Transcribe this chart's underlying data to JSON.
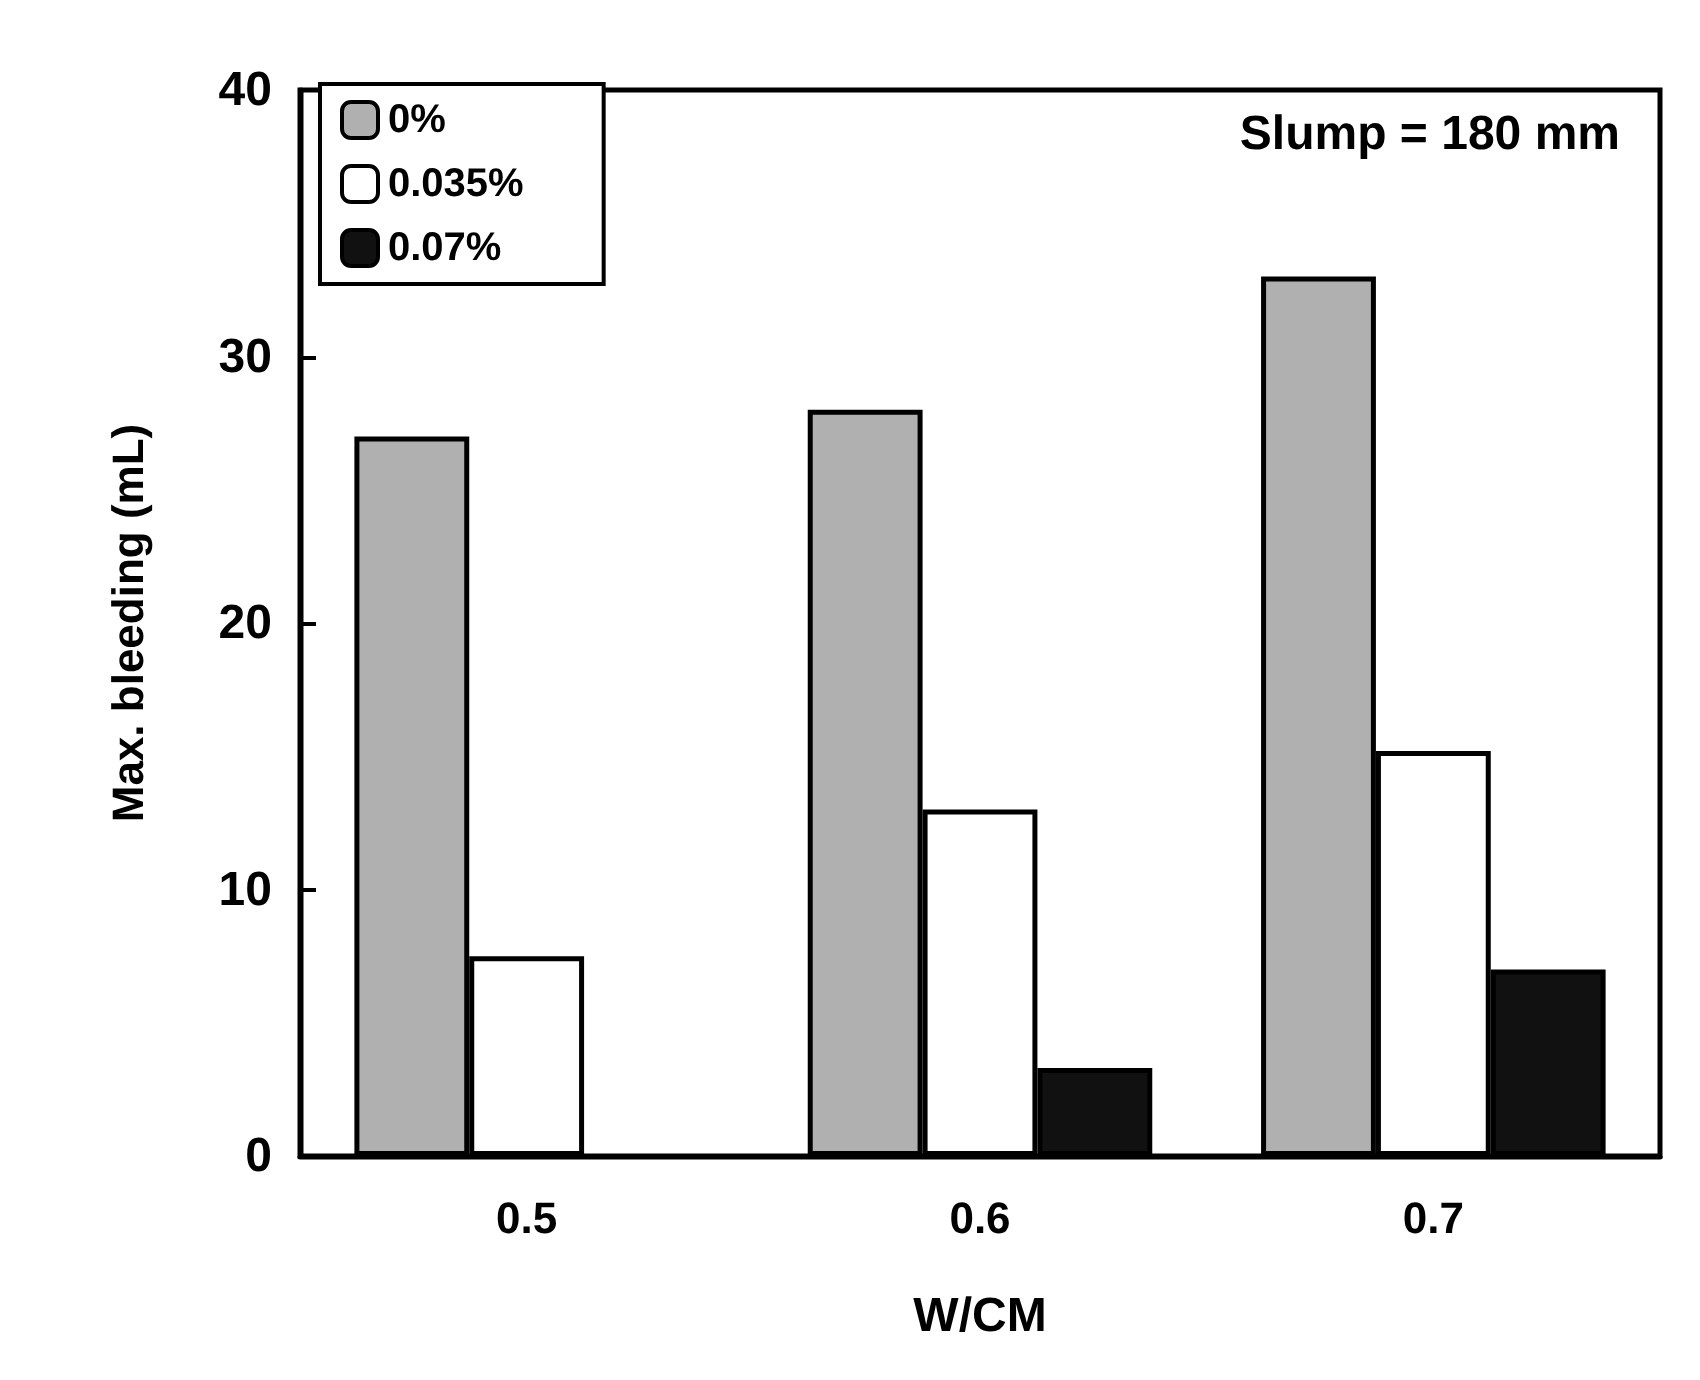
{
  "chart_data": {
    "type": "bar",
    "xlabel": "W/CM",
    "ylabel": "Max. bleeding (mL)",
    "categories": [
      "0.5",
      "0.6",
      "0.7"
    ],
    "series": [
      {
        "name": "0%",
        "color": "#b0b0b0",
        "values": [
          27,
          28,
          33
        ]
      },
      {
        "name": "0.035%",
        "color": "#ffffff",
        "values": [
          7.5,
          13,
          15.2
        ]
      },
      {
        "name": "0.07%",
        "color": "#111111",
        "values": [
          null,
          3.3,
          7
        ]
      }
    ],
    "ylim": [
      0,
      40
    ],
    "yticks": [
      0,
      10,
      20,
      30,
      40
    ],
    "grid": false,
    "legend": "top left",
    "annotations": [
      "Slump = 180 mm"
    ]
  }
}
